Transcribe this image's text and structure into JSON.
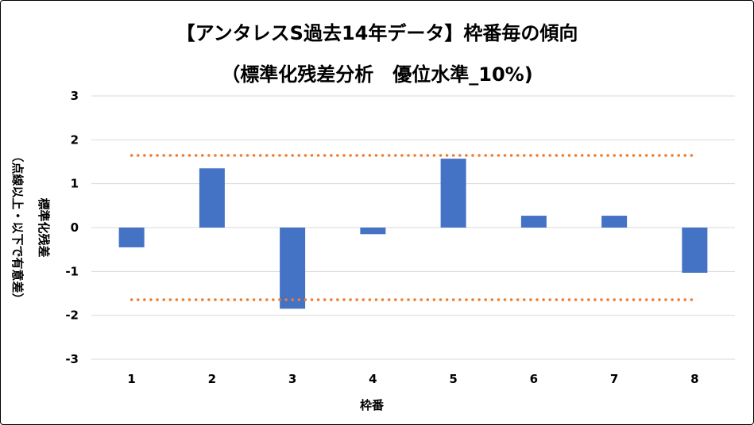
{
  "chart_data": {
    "type": "bar",
    "title": "【アンタレスS過去14年データ】枠番毎の傾向",
    "subtitle": "（標準化残差分析　優位水準_10%)",
    "xlabel": "枠番",
    "ylabel": "標準化残差",
    "ylabel_note": "（点線以上・以下で有意差）",
    "categories": [
      "1",
      "2",
      "3",
      "4",
      "5",
      "6",
      "7",
      "8"
    ],
    "series": [
      {
        "values": [
          -0.45,
          1.35,
          -1.85,
          -0.15,
          1.57,
          0.27,
          0.27,
          -1.03
        ]
      }
    ],
    "ylim": [
      -3,
      3
    ],
    "yticks": [
      "3",
      "2",
      "1",
      "0",
      "-1",
      "-2",
      "-3"
    ],
    "ytick_values": [
      3,
      2,
      1,
      0,
      -1,
      -2,
      -3
    ],
    "thresholds": [
      1.645,
      -1.645
    ],
    "grid": true,
    "legend": "none",
    "colors": {
      "bar": "#4472C4",
      "threshold": "#ED7D31",
      "grid": "#D9D9D9"
    }
  }
}
